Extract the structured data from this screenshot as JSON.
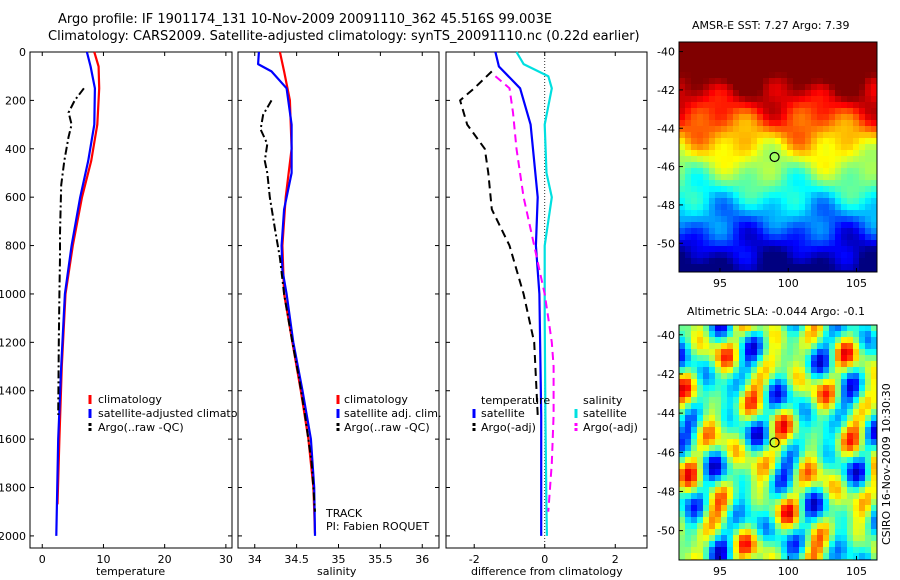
{
  "header": {
    "line1": "Argo profile: IF 1901174_131 10-Nov-2009 20091110_362 45.516S 99.003E",
    "line2": "Climatology: CARS2009. Satellite-adjusted climatology: synTS_20091110.nc (0.22d earlier)"
  },
  "side_note": "CSIRO 16-Nov-2009 10:30:30",
  "colors": {
    "red": "#ff0000",
    "blue": "#0000ff",
    "black": "#000000",
    "cyan": "#00e0e0",
    "magenta": "#ff00ff"
  },
  "chart_data": [
    {
      "id": "temperature",
      "type": "line",
      "xlabel": "temperature",
      "xlim": [
        -2,
        31
      ],
      "ylim": [
        0,
        2050
      ],
      "xticks": [
        0,
        10,
        20,
        30
      ],
      "yticks": [
        0,
        200,
        400,
        600,
        800,
        1000,
        1200,
        1400,
        1600,
        1800,
        2000
      ],
      "legend": [
        "climatology",
        "satellite-adjusted climatology",
        "Argo(..raw -QC)"
      ],
      "series": [
        {
          "name": "climatology",
          "color": "red",
          "style": "solid",
          "points": [
            [
              8.5,
              0
            ],
            [
              9.2,
              60
            ],
            [
              9.3,
              150
            ],
            [
              9,
              300
            ],
            [
              8,
              450
            ],
            [
              6.5,
              600
            ],
            [
              5,
              800
            ],
            [
              3.8,
              1000
            ],
            [
              3.2,
              1300
            ],
            [
              2.8,
              1600
            ],
            [
              2.5,
              1870
            ]
          ]
        },
        {
          "name": "satellite-adjusted climatology",
          "color": "blue",
          "style": "solid",
          "points": [
            [
              7.3,
              0
            ],
            [
              7.9,
              60
            ],
            [
              8.6,
              150
            ],
            [
              8.5,
              300
            ],
            [
              7.5,
              450
            ],
            [
              6.2,
              600
            ],
            [
              4.8,
              800
            ],
            [
              3.7,
              1000
            ],
            [
              3.1,
              1300
            ],
            [
              2.6,
              1600
            ],
            [
              2.3,
              2000
            ]
          ]
        },
        {
          "name": "Argo(..raw -QC)",
          "color": "black",
          "style": "dashdot",
          "points": [
            [
              6.8,
              150
            ],
            [
              5.3,
              200
            ],
            [
              4.3,
              250
            ],
            [
              4.8,
              300
            ],
            [
              4.3,
              350
            ],
            [
              3.6,
              450
            ],
            [
              3.1,
              550
            ],
            [
              3.0,
              650
            ],
            [
              2.9,
              750
            ],
            [
              2.9,
              850
            ],
            [
              2.8,
              1000
            ],
            [
              2.7,
              1200
            ],
            [
              2.6,
              1500
            ]
          ]
        }
      ]
    },
    {
      "id": "salinity",
      "type": "line",
      "xlabel": "salinity",
      "xlim": [
        33.8,
        36.2
      ],
      "ylim": [
        0,
        2050
      ],
      "xticks": [
        34,
        34.5,
        35,
        35.5,
        36
      ],
      "yticks": [
        0,
        200,
        400,
        600,
        800,
        1000,
        1200,
        1400,
        1600,
        1800,
        2000
      ],
      "legend": [
        "climatology",
        "satellite adj. clim.",
        "Argo(..raw -QC)"
      ],
      "annotations": [
        "TRACK",
        "PI: Fabien ROQUET"
      ],
      "series": [
        {
          "name": "climatology",
          "color": "red",
          "style": "solid",
          "points": [
            [
              34.3,
              0
            ],
            [
              34.35,
              80
            ],
            [
              34.42,
              200
            ],
            [
              34.44,
              400
            ],
            [
              34.37,
              600
            ],
            [
              34.33,
              800
            ],
            [
              34.35,
              1000
            ],
            [
              34.45,
              1200
            ],
            [
              34.55,
              1400
            ],
            [
              34.64,
              1600
            ],
            [
              34.7,
              1800
            ],
            [
              34.72,
              1990
            ]
          ]
        },
        {
          "name": "satellite adj. clim.",
          "color": "blue",
          "style": "solid",
          "points": [
            [
              34.05,
              0
            ],
            [
              34.04,
              50
            ],
            [
              34.2,
              80
            ],
            [
              34.38,
              150
            ],
            [
              34.44,
              300
            ],
            [
              34.44,
              500
            ],
            [
              34.35,
              650
            ],
            [
              34.32,
              800
            ],
            [
              34.33,
              900
            ],
            [
              34.38,
              1000
            ],
            [
              34.46,
              1200
            ],
            [
              34.57,
              1400
            ],
            [
              34.67,
              1600
            ],
            [
              34.71,
              1800
            ],
            [
              34.72,
              2000
            ]
          ]
        },
        {
          "name": "Argo(..raw -QC)",
          "color": "black",
          "style": "dashdot",
          "points": [
            [
              34.2,
              200
            ],
            [
              34.1,
              260
            ],
            [
              34.07,
              320
            ],
            [
              34.15,
              380
            ],
            [
              34.12,
              450
            ],
            [
              34.15,
              500
            ],
            [
              34.18,
              600
            ],
            [
              34.25,
              750
            ],
            [
              34.3,
              850
            ],
            [
              34.35,
              1000
            ],
            [
              34.45,
              1200
            ],
            [
              34.53,
              1350
            ],
            [
              34.6,
              1500
            ],
            [
              34.68,
              1700
            ],
            [
              34.72,
              1900
            ]
          ]
        }
      ]
    },
    {
      "id": "difference",
      "type": "line",
      "xlabel": "difference from climatology",
      "xlim": [
        -2.8,
        2.9
      ],
      "ylim": [
        0,
        2050
      ],
      "xticks": [
        -2,
        0,
        2
      ],
      "yticks": [
        0,
        200,
        400,
        600,
        800,
        1000,
        1200,
        1400,
        1600,
        1800,
        2000
      ],
      "legend_groups": [
        {
          "title": "temperature",
          "items": [
            "satellite",
            "Argo(-adj)"
          ]
        },
        {
          "title": "salinity",
          "items": [
            "satellite",
            "Argo(-adj)"
          ]
        }
      ],
      "series": [
        {
          "name": "temperature satellite",
          "color": "blue",
          "style": "solid",
          "points": [
            [
              -1.4,
              0
            ],
            [
              -1.3,
              60
            ],
            [
              -0.7,
              150
            ],
            [
              -0.4,
              300
            ],
            [
              -0.2,
              600
            ],
            [
              -0.25,
              800
            ],
            [
              -0.15,
              1000
            ],
            [
              -0.1,
              1500
            ],
            [
              -0.1,
              2000
            ]
          ]
        },
        {
          "name": "temperature Argo(-adj)",
          "color": "black",
          "style": "dashed",
          "points": [
            [
              -1.5,
              80
            ],
            [
              -2.0,
              150
            ],
            [
              -2.4,
              200
            ],
            [
              -2.2,
              300
            ],
            [
              -1.7,
              400
            ],
            [
              -1.6,
              500
            ],
            [
              -1.5,
              650
            ],
            [
              -1.0,
              800
            ],
            [
              -0.6,
              1000
            ],
            [
              -0.3,
              1200
            ],
            [
              -0.2,
              1500
            ]
          ]
        },
        {
          "name": "salinity satellite",
          "color": "cyan",
          "style": "solid",
          "points": [
            [
              -0.8,
              0
            ],
            [
              -0.6,
              50
            ],
            [
              0.1,
              100
            ],
            [
              0.2,
              150
            ],
            [
              0.0,
              300
            ],
            [
              0.05,
              500
            ],
            [
              0.2,
              600
            ],
            [
              0.0,
              800
            ],
            [
              0.0,
              1100
            ],
            [
              0.02,
              1500
            ],
            [
              0.05,
              1900
            ],
            [
              0.06,
              2000
            ]
          ]
        },
        {
          "name": "salinity Argo(-adj)",
          "color": "magenta",
          "style": "dashed",
          "points": [
            [
              -1.4,
              100
            ],
            [
              -1.0,
              150
            ],
            [
              -0.9,
              250
            ],
            [
              -0.8,
              400
            ],
            [
              -0.6,
              600
            ],
            [
              -0.3,
              800
            ],
            [
              -0.15,
              900
            ],
            [
              0.0,
              1000
            ],
            [
              0.1,
              1100
            ],
            [
              0.2,
              1200
            ],
            [
              0.25,
              1300
            ],
            [
              0.25,
              1500
            ],
            [
              0.2,
              1700
            ],
            [
              0.1,
              1900
            ]
          ]
        }
      ]
    },
    {
      "id": "amsre_sst_map",
      "type": "heatmap",
      "title": "AMSR-E SST: 7.27 Argo: 7.39",
      "xlim": [
        92,
        106.5
      ],
      "ylim": [
        -51.5,
        -39.5
      ],
      "xticks": [
        95,
        100,
        105
      ],
      "yticks": [
        -40,
        -42,
        -44,
        -46,
        -48,
        -50
      ],
      "marker": {
        "lon": 99.0,
        "lat": -45.5
      }
    },
    {
      "id": "altimetric_sla_map",
      "type": "heatmap",
      "title": "Altimetric SLA: -0.044 Argo: -0.1",
      "xlim": [
        92,
        106.5
      ],
      "ylim": [
        -51.5,
        -39.5
      ],
      "xticks": [
        95,
        100,
        105
      ],
      "yticks": [
        -40,
        -42,
        -44,
        -46,
        -48,
        -50
      ],
      "marker": {
        "lon": 99.0,
        "lat": -45.5
      }
    }
  ]
}
